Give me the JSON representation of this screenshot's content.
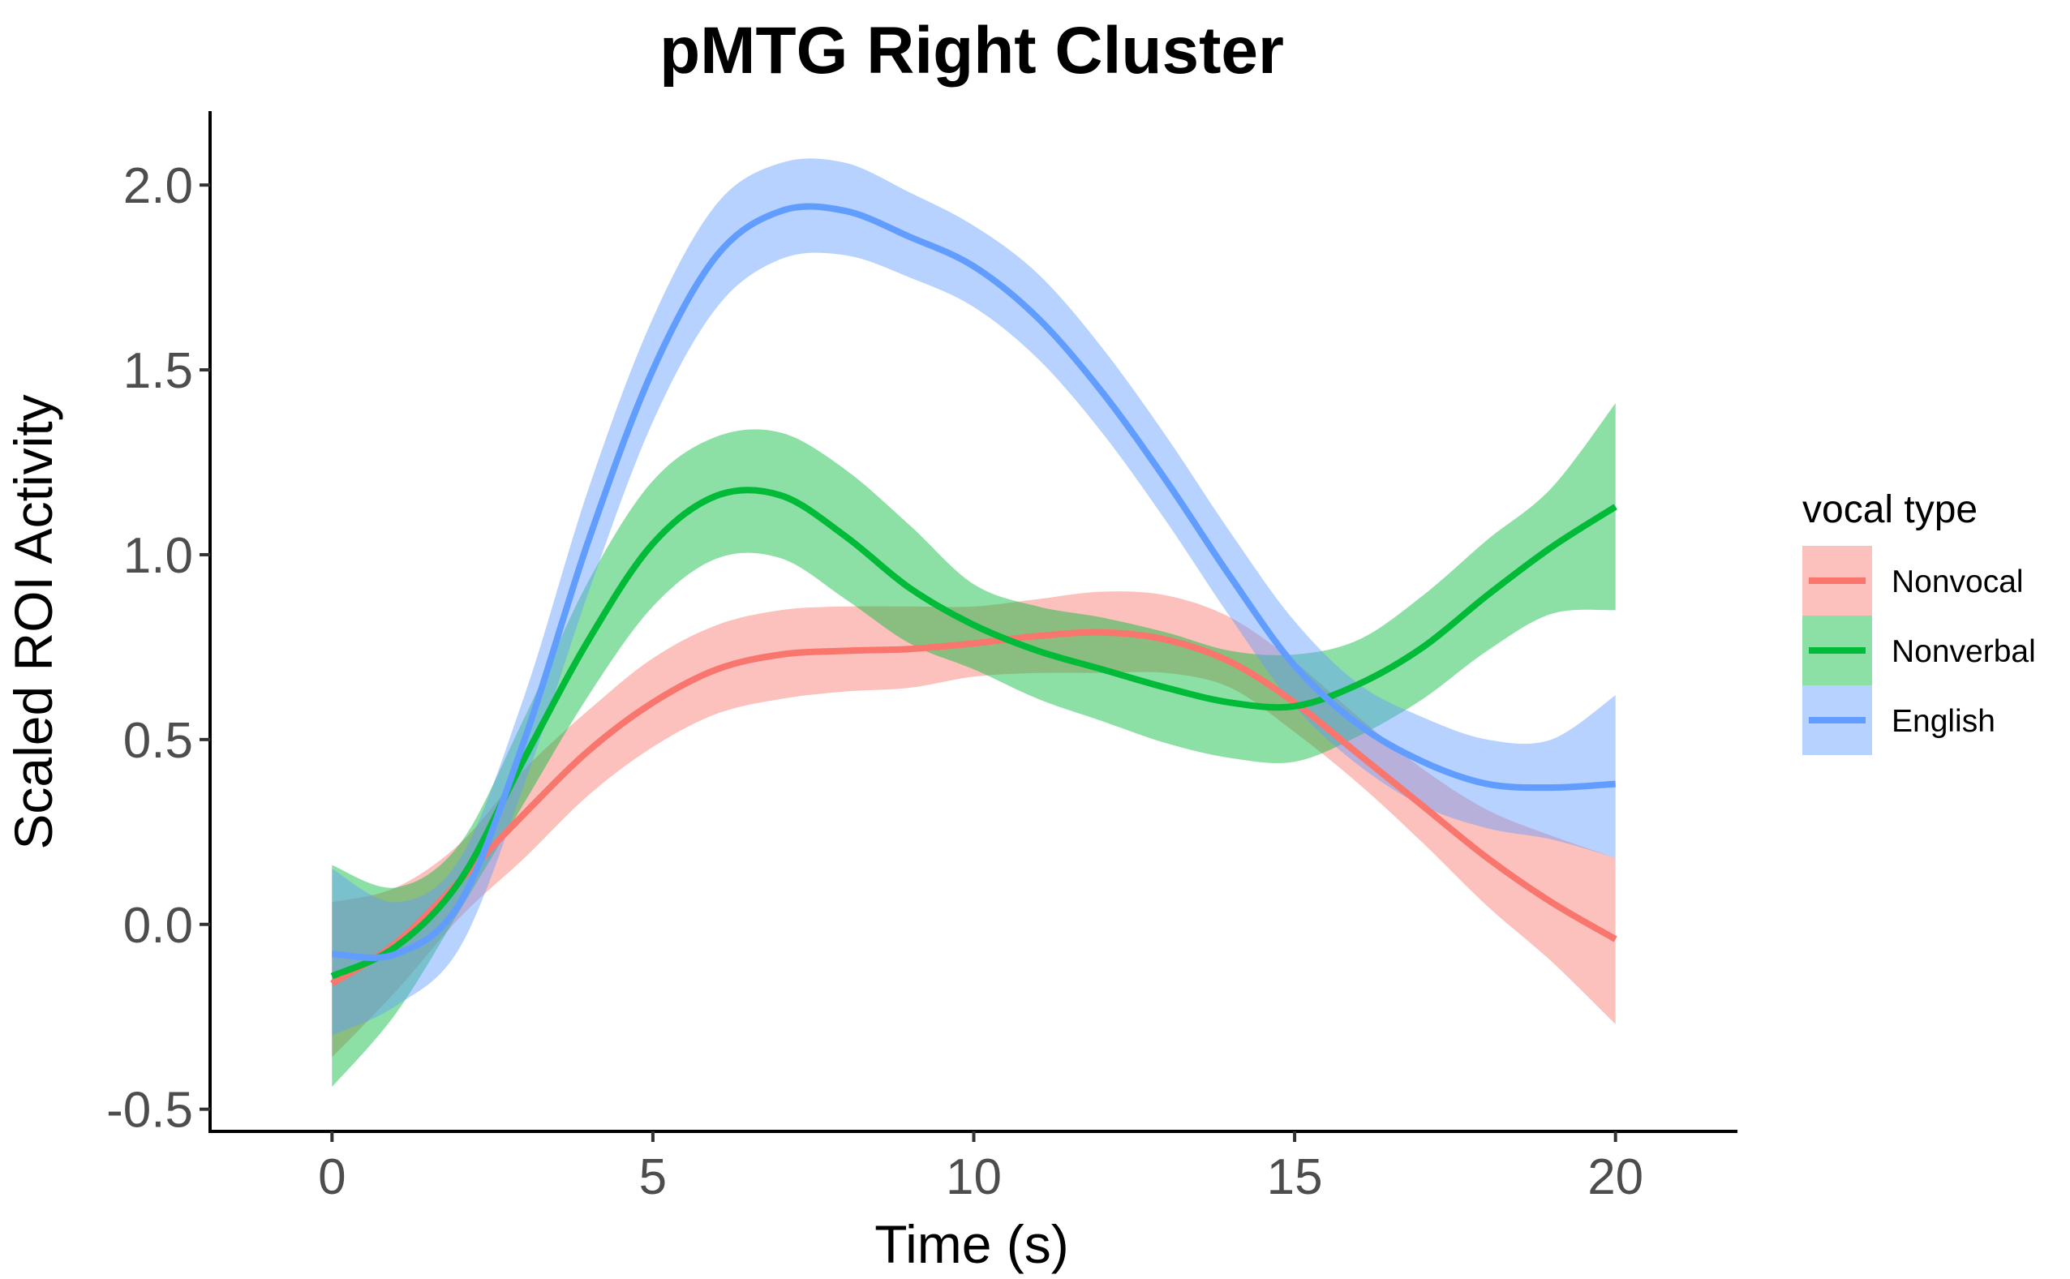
{
  "chart_data": {
    "type": "line",
    "title": "pMTG Right Cluster",
    "xlabel": "Time (s)",
    "ylabel": "Scaled ROI Activity",
    "xlim": [
      -1.9,
      21.9
    ],
    "ylim": [
      -0.56,
      2.2
    ],
    "x_ticks": [
      0,
      5,
      10,
      15,
      20
    ],
    "x_tick_labels": [
      "0",
      "5",
      "10",
      "15",
      "20"
    ],
    "y_ticks": [
      -0.5,
      0.0,
      0.5,
      1.0,
      1.5,
      2.0
    ],
    "y_tick_labels": [
      "-0.5",
      "0.0",
      "0.5",
      "1.0",
      "1.5",
      "2.0"
    ],
    "grid": false,
    "legend": {
      "title": "vocal type",
      "position": "right"
    },
    "series": [
      {
        "name": "Nonvocal",
        "color": "#F8766D",
        "x": [
          0,
          1,
          2,
          3,
          4,
          5,
          6,
          7,
          8,
          9,
          10,
          11,
          12,
          13,
          14,
          15,
          16,
          17,
          18,
          19,
          20
        ],
        "y": [
          -0.16,
          -0.05,
          0.12,
          0.3,
          0.47,
          0.6,
          0.69,
          0.73,
          0.74,
          0.745,
          0.76,
          0.78,
          0.79,
          0.77,
          0.71,
          0.6,
          0.46,
          0.32,
          0.18,
          0.06,
          -0.04
        ],
        "lower": [
          -0.36,
          -0.18,
          0.02,
          0.18,
          0.35,
          0.48,
          0.57,
          0.61,
          0.63,
          0.64,
          0.67,
          0.68,
          0.68,
          0.68,
          0.64,
          0.52,
          0.38,
          0.22,
          0.05,
          -0.1,
          -0.27
        ],
        "upper": [
          0.06,
          0.1,
          0.22,
          0.42,
          0.58,
          0.72,
          0.81,
          0.85,
          0.86,
          0.86,
          0.86,
          0.88,
          0.9,
          0.89,
          0.83,
          0.71,
          0.56,
          0.42,
          0.31,
          0.24,
          0.18
        ]
      },
      {
        "name": "Nonverbal",
        "color": "#00BA38",
        "x": [
          0,
          1,
          2,
          3,
          4,
          5,
          6,
          7,
          8,
          9,
          10,
          11,
          12,
          13,
          14,
          15,
          16,
          17,
          18,
          19,
          20
        ],
        "y": [
          -0.14,
          -0.06,
          0.12,
          0.45,
          0.77,
          1.03,
          1.16,
          1.16,
          1.05,
          0.91,
          0.81,
          0.74,
          0.69,
          0.64,
          0.6,
          0.59,
          0.65,
          0.75,
          0.89,
          1.02,
          1.13
        ],
        "lower": [
          -0.44,
          -0.24,
          0.04,
          0.33,
          0.62,
          0.86,
          0.99,
          0.99,
          0.88,
          0.76,
          0.69,
          0.61,
          0.55,
          0.49,
          0.45,
          0.44,
          0.51,
          0.61,
          0.74,
          0.84,
          0.85
        ],
        "upper": [
          0.16,
          0.1,
          0.22,
          0.56,
          0.93,
          1.2,
          1.32,
          1.33,
          1.23,
          1.08,
          0.92,
          0.86,
          0.83,
          0.79,
          0.74,
          0.73,
          0.77,
          0.89,
          1.04,
          1.18,
          1.41
        ]
      },
      {
        "name": "English",
        "color": "#619CFF",
        "x": [
          0,
          1,
          2,
          3,
          4,
          5,
          6,
          7,
          8,
          9,
          10,
          11,
          12,
          13,
          14,
          15,
          16,
          17,
          18,
          19,
          20
        ],
        "y": [
          -0.08,
          -0.08,
          0.06,
          0.5,
          1.04,
          1.5,
          1.81,
          1.93,
          1.93,
          1.86,
          1.78,
          1.64,
          1.44,
          1.2,
          0.94,
          0.7,
          0.54,
          0.44,
          0.38,
          0.37,
          0.38
        ],
        "lower": [
          -0.3,
          -0.22,
          -0.06,
          0.38,
          0.9,
          1.36,
          1.67,
          1.8,
          1.81,
          1.75,
          1.67,
          1.53,
          1.33,
          1.09,
          0.83,
          0.59,
          0.43,
          0.32,
          0.26,
          0.23,
          0.18
        ],
        "upper": [
          0.15,
          0.06,
          0.18,
          0.62,
          1.18,
          1.64,
          1.95,
          2.06,
          2.06,
          1.98,
          1.89,
          1.76,
          1.56,
          1.32,
          1.06,
          0.82,
          0.65,
          0.56,
          0.5,
          0.5,
          0.62
        ]
      }
    ]
  }
}
